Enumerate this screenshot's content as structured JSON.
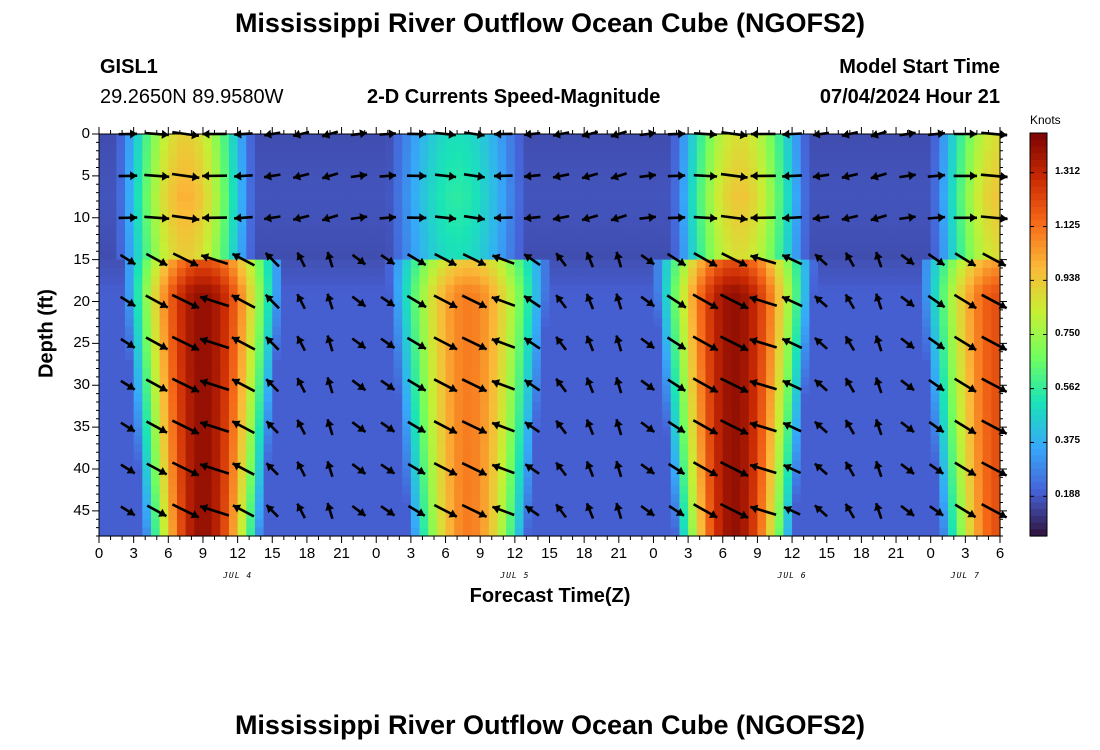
{
  "page": {
    "title_top": "Mississippi River Outflow Ocean Cube (NGOFS2)",
    "title_bottom": "Mississippi River Outflow Ocean Cube (NGOFS2)",
    "station_id": "GISL1",
    "station_coords": "29.2650N  89.9580W",
    "plot_title": "2-D Currents Speed-Magnitude",
    "model_start_label": "Model Start Time",
    "model_start_value": "07/04/2024 Hour 21"
  },
  "colors": {
    "colormap": [
      "#30123b",
      "#4662d7",
      "#36aaf9",
      "#1ae4b6",
      "#72fe5e",
      "#c7ef34",
      "#fbb938",
      "#f56918",
      "#c92903",
      "#7a0403"
    ],
    "arrow": "#000000"
  },
  "chart_data": {
    "type": "heatmap",
    "xlabel": "Forecast Time(Z)",
    "ylabel": "Depth (ft)",
    "x_unit": "hours since 07/04 00Z",
    "xlim": [
      0,
      78
    ],
    "ylim": [
      48,
      0
    ],
    "x_tick_hours": [
      0,
      3,
      6,
      9,
      12,
      15,
      18,
      21,
      24,
      27,
      30,
      33,
      36,
      39,
      42,
      45,
      48,
      51,
      54,
      57,
      60,
      63,
      66,
      69,
      72,
      75,
      78
    ],
    "x_tick_labels": [
      "0",
      "3",
      "6",
      "9",
      "12",
      "15",
      "18",
      "21",
      "0",
      "3",
      "6",
      "9",
      "12",
      "15",
      "18",
      "21",
      "0",
      "3",
      "6",
      "9",
      "12",
      "15",
      "18",
      "21",
      "0",
      "3",
      "6"
    ],
    "y_ticks": [
      0,
      5,
      10,
      15,
      20,
      25,
      30,
      35,
      40,
      45
    ],
    "date_labels": [
      {
        "label": "JUL 4",
        "hour": 12
      },
      {
        "label": "JUL 5",
        "hour": 36
      },
      {
        "label": "JUL 6",
        "hour": 60
      },
      {
        "label": "JUL 7",
        "hour": 75
      }
    ],
    "colorbar": {
      "unit": "Knots",
      "range": [
        0.05,
        1.45
      ],
      "ticks": [
        1.312,
        1.125,
        0.938,
        0.75,
        0.562,
        0.375,
        0.188
      ],
      "tick_labels": [
        "1.312",
        "1.125",
        "0.938",
        "0.750",
        "0.562",
        "0.375",
        "0.188"
      ]
    },
    "speed_peaks": {
      "surface_layer": [
        {
          "hour": 7.5,
          "speed": 1.0
        },
        {
          "hour": 31,
          "speed": 0.55
        },
        {
          "hour": 55.5,
          "speed": 0.95
        },
        {
          "hour": 78,
          "speed": 0.95
        }
      ],
      "lower_layer": [
        {
          "hour": 9,
          "speed": 1.4
        },
        {
          "hour": 32,
          "speed": 1.1
        },
        {
          "hour": 55,
          "speed": 1.4
        },
        {
          "hour": 78,
          "speed": 1.2
        }
      ]
    },
    "vector_times": [
      2.5,
      5,
      7.5,
      10,
      12.5,
      15,
      17.5,
      20,
      22.5,
      25,
      27.5,
      30,
      32.5,
      35,
      37.5,
      40,
      42.5,
      45,
      47.5,
      50,
      52.5,
      55,
      57.5,
      60,
      62.5,
      65,
      67.5,
      70,
      72.5,
      75,
      77.5
    ],
    "vector_depths": [
      0,
      5,
      10,
      15,
      20,
      25,
      30,
      35,
      40,
      45
    ]
  }
}
